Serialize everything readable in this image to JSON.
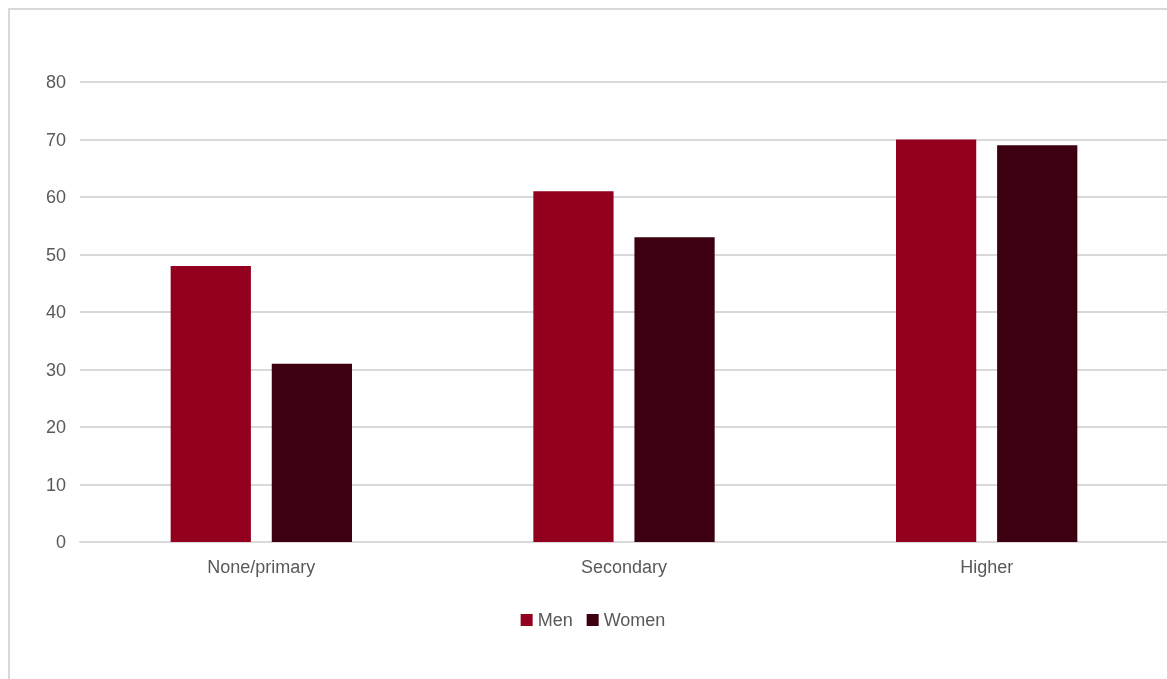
{
  "chart_data": {
    "type": "bar",
    "categories": [
      "None/primary",
      "Secondary",
      "Higher"
    ],
    "series": [
      {
        "name": "Men",
        "color": "#93001f",
        "values": [
          48,
          61,
          70
        ]
      },
      {
        "name": "Women",
        "color": "#3c0010",
        "values": [
          31,
          53,
          69
        ]
      }
    ],
    "ylim": [
      0,
      80
    ],
    "yticks": [
      0,
      10,
      20,
      30,
      40,
      50,
      60,
      70,
      80
    ],
    "grid": "y",
    "legend": "bottom"
  }
}
